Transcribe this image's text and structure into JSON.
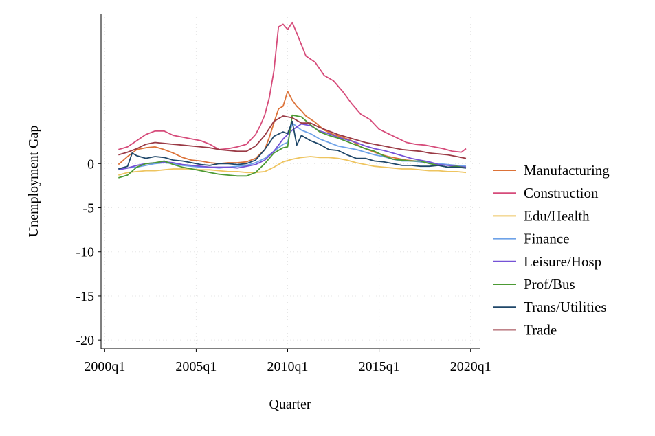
{
  "chart_data": {
    "type": "line",
    "title": "",
    "xlabel": "Quarter",
    "ylabel": "Unemployment Gap",
    "x_ticks": [
      "2000q1",
      "2005q1",
      "2010q1",
      "2015q1",
      "2020q1"
    ],
    "x_tick_values": [
      2000.0,
      2005.0,
      2010.0,
      2015.0,
      2020.0
    ],
    "y_ticks": [
      "-20",
      "-15",
      "-10",
      "-5",
      "0"
    ],
    "y_tick_values": [
      -20,
      -15,
      -10,
      -5,
      0
    ],
    "xlim": [
      1999.8,
      2020.5
    ],
    "ylim": [
      -21,
      17
    ],
    "grid": true,
    "legend_position": "right",
    "series": [
      {
        "name": "Manufacturing",
        "color": "#dc7238",
        "x": [
          2000.75,
          2001.25,
          2001.75,
          2002.25,
          2002.75,
          2003.25,
          2003.75,
          2004.25,
          2004.75,
          2005.25,
          2005.75,
          2006.25,
          2006.75,
          2007.25,
          2007.75,
          2008.25,
          2008.75,
          2009.0,
          2009.25,
          2009.5,
          2009.75,
          2010.0,
          2010.25,
          2010.5,
          2010.75,
          2011.0,
          2011.5,
          2012.0,
          2012.5,
          2013.0,
          2013.5,
          2014.0,
          2014.5,
          2015.0,
          2015.5,
          2016.0,
          2016.5,
          2017.0,
          2017.5,
          2018.0,
          2018.5,
          2019.0,
          2019.5,
          2019.75
        ],
        "y": [
          -0.1,
          0.8,
          1.6,
          1.8,
          1.9,
          1.6,
          1.2,
          0.7,
          0.4,
          0.3,
          0.1,
          0.0,
          0.1,
          0.1,
          0.2,
          0.6,
          1.6,
          3.0,
          4.6,
          6.2,
          6.5,
          8.2,
          7.2,
          6.5,
          6.0,
          5.4,
          4.7,
          3.8,
          3.3,
          3.0,
          2.6,
          1.9,
          1.5,
          1.1,
          0.8,
          0.6,
          0.4,
          0.3,
          0.1,
          0.0,
          -0.1,
          -0.2,
          -0.3,
          -0.3
        ]
      },
      {
        "name": "Construction",
        "color": "#d64b7a",
        "x": [
          2000.75,
          2001.25,
          2001.75,
          2002.25,
          2002.75,
          2003.25,
          2003.75,
          2004.25,
          2004.75,
          2005.25,
          2005.75,
          2006.25,
          2006.75,
          2007.25,
          2007.75,
          2008.25,
          2008.5,
          2008.75,
          2009.0,
          2009.25,
          2009.5,
          2009.75,
          2010.0,
          2010.25,
          2010.5,
          2010.75,
          2011.0,
          2011.5,
          2012.0,
          2012.5,
          2013.0,
          2013.5,
          2014.0,
          2014.5,
          2015.0,
          2015.5,
          2016.0,
          2016.5,
          2017.0,
          2017.5,
          2018.0,
          2018.5,
          2019.0,
          2019.5,
          2019.75
        ],
        "y": [
          1.6,
          1.9,
          2.6,
          3.3,
          3.7,
          3.7,
          3.2,
          3.0,
          2.8,
          2.6,
          2.2,
          1.6,
          1.7,
          1.9,
          2.2,
          3.3,
          4.3,
          5.5,
          7.5,
          10.5,
          15.5,
          15.8,
          15.2,
          16.0,
          14.8,
          13.5,
          12.2,
          11.5,
          10.0,
          9.4,
          8.2,
          6.8,
          5.6,
          5.0,
          3.9,
          3.4,
          2.9,
          2.4,
          2.2,
          2.1,
          1.9,
          1.7,
          1.4,
          1.3,
          1.7
        ]
      },
      {
        "name": "Edu/Health",
        "color": "#eec45f",
        "x": [
          2000.75,
          2001.25,
          2001.75,
          2002.25,
          2002.75,
          2003.25,
          2003.75,
          2004.25,
          2004.75,
          2005.25,
          2005.75,
          2006.25,
          2006.75,
          2007.25,
          2007.75,
          2008.25,
          2008.75,
          2009.25,
          2009.75,
          2010.25,
          2010.75,
          2011.25,
          2011.75,
          2012.25,
          2012.75,
          2013.25,
          2013.75,
          2014.25,
          2014.75,
          2015.25,
          2015.75,
          2016.25,
          2016.75,
          2017.25,
          2017.75,
          2018.25,
          2018.75,
          2019.25,
          2019.75
        ],
        "y": [
          -1.3,
          -1.0,
          -0.9,
          -0.8,
          -0.8,
          -0.7,
          -0.6,
          -0.6,
          -0.6,
          -0.7,
          -0.7,
          -0.8,
          -0.9,
          -0.9,
          -1.0,
          -1.0,
          -0.9,
          -0.4,
          0.2,
          0.5,
          0.7,
          0.8,
          0.7,
          0.7,
          0.6,
          0.4,
          0.1,
          -0.1,
          -0.3,
          -0.4,
          -0.5,
          -0.6,
          -0.6,
          -0.7,
          -0.8,
          -0.8,
          -0.9,
          -0.9,
          -1.0
        ]
      },
      {
        "name": "Finance",
        "color": "#6ea2e8",
        "x": [
          2000.75,
          2001.25,
          2001.75,
          2002.25,
          2002.75,
          2003.25,
          2003.75,
          2004.25,
          2004.75,
          2005.25,
          2005.75,
          2006.25,
          2006.75,
          2007.25,
          2007.75,
          2008.25,
          2008.75,
          2009.25,
          2009.75,
          2010.0,
          2010.25,
          2010.75,
          2011.25,
          2011.75,
          2012.25,
          2012.75,
          2013.25,
          2013.75,
          2014.25,
          2014.75,
          2015.25,
          2015.75,
          2016.25,
          2016.75,
          2017.25,
          2017.75,
          2018.25,
          2018.75,
          2019.25,
          2019.75
        ],
        "y": [
          -0.6,
          -0.5,
          -0.4,
          -0.2,
          0.0,
          0.1,
          0.0,
          -0.2,
          -0.3,
          -0.4,
          -0.4,
          -0.5,
          -0.4,
          -0.3,
          -0.2,
          0.1,
          0.6,
          1.4,
          2.2,
          2.4,
          4.6,
          3.8,
          3.4,
          2.8,
          2.4,
          2.0,
          1.8,
          1.6,
          1.3,
          1.0,
          0.8,
          0.5,
          0.3,
          0.3,
          0.2,
          0.1,
          0.0,
          -0.1,
          -0.2,
          -0.3
        ]
      },
      {
        "name": "Leisure/Hosp",
        "color": "#7552d6",
        "x": [
          2000.75,
          2001.25,
          2001.75,
          2002.25,
          2002.75,
          2003.25,
          2003.75,
          2004.25,
          2004.75,
          2005.25,
          2005.75,
          2006.25,
          2006.75,
          2007.25,
          2007.75,
          2008.25,
          2008.75,
          2009.25,
          2009.75,
          2010.25,
          2010.75,
          2011.25,
          2011.75,
          2012.25,
          2012.75,
          2013.25,
          2013.75,
          2014.25,
          2014.75,
          2015.25,
          2015.75,
          2016.25,
          2016.75,
          2017.25,
          2017.75,
          2018.25,
          2018.75,
          2019.25,
          2019.75
        ],
        "y": [
          -0.7,
          -0.5,
          -0.2,
          0.0,
          0.1,
          0.2,
          0.1,
          -0.1,
          -0.2,
          -0.3,
          -0.4,
          -0.4,
          -0.4,
          -0.5,
          -0.3,
          -0.1,
          0.4,
          1.4,
          2.8,
          3.8,
          4.5,
          4.3,
          3.7,
          3.4,
          3.0,
          2.7,
          2.4,
          2.0,
          1.7,
          1.5,
          1.2,
          0.9,
          0.6,
          0.4,
          0.2,
          -0.1,
          -0.2,
          -0.3,
          -0.4
        ]
      },
      {
        "name": "Prof/Bus",
        "color": "#4c9a34",
        "x": [
          2000.75,
          2001.25,
          2001.75,
          2002.25,
          2002.75,
          2003.25,
          2003.75,
          2004.25,
          2004.75,
          2005.25,
          2005.75,
          2006.25,
          2006.75,
          2007.25,
          2007.75,
          2008.25,
          2008.75,
          2009.25,
          2009.75,
          2010.0,
          2010.25,
          2010.75,
          2011.25,
          2011.75,
          2012.25,
          2012.75,
          2013.25,
          2013.75,
          2014.25,
          2014.75,
          2015.25,
          2015.75,
          2016.25,
          2016.75,
          2017.25,
          2017.75,
          2018.25,
          2018.75,
          2019.25,
          2019.75
        ],
        "y": [
          -1.6,
          -1.3,
          -0.4,
          0.0,
          0.1,
          0.3,
          -0.1,
          -0.4,
          -0.6,
          -0.8,
          -1.0,
          -1.2,
          -1.3,
          -1.4,
          -1.4,
          -1.0,
          0.0,
          1.2,
          1.8,
          1.9,
          5.5,
          5.3,
          4.4,
          3.6,
          3.2,
          2.9,
          2.5,
          2.1,
          1.7,
          1.4,
          0.9,
          0.5,
          0.4,
          0.3,
          0.3,
          0.0,
          -0.2,
          -0.4,
          -0.3,
          -0.5
        ]
      },
      {
        "name": "Trans/Utilities",
        "color": "#1f4769",
        "x": [
          2000.75,
          2001.25,
          2001.5,
          2001.75,
          2002.25,
          2002.75,
          2003.25,
          2003.75,
          2004.25,
          2004.75,
          2005.25,
          2005.75,
          2006.25,
          2006.75,
          2007.25,
          2007.75,
          2008.25,
          2008.75,
          2009.25,
          2009.75,
          2010.0,
          2010.25,
          2010.5,
          2010.75,
          2011.25,
          2011.75,
          2012.25,
          2012.75,
          2013.25,
          2013.75,
          2014.25,
          2014.75,
          2015.25,
          2015.75,
          2016.25,
          2016.75,
          2017.25,
          2017.75,
          2018.25,
          2018.75,
          2019.25,
          2019.75
        ],
        "y": [
          -0.6,
          -0.3,
          1.2,
          0.9,
          0.6,
          0.8,
          0.7,
          0.4,
          0.3,
          0.1,
          -0.1,
          -0.2,
          0.0,
          0.0,
          -0.1,
          0.0,
          0.4,
          1.6,
          3.1,
          3.6,
          3.4,
          4.8,
          2.1,
          3.2,
          2.6,
          2.2,
          1.6,
          1.5,
          1.0,
          0.6,
          0.6,
          0.3,
          0.2,
          0.0,
          -0.2,
          -0.2,
          -0.3,
          -0.3,
          -0.2,
          -0.4,
          -0.4,
          -0.5
        ]
      },
      {
        "name": "Trade",
        "color": "#9a3a45",
        "x": [
          2000.75,
          2001.25,
          2001.75,
          2002.25,
          2002.75,
          2003.25,
          2003.75,
          2004.25,
          2004.75,
          2005.25,
          2005.75,
          2006.25,
          2006.75,
          2007.25,
          2007.75,
          2008.25,
          2008.75,
          2009.25,
          2009.75,
          2010.25,
          2010.75,
          2011.25,
          2011.75,
          2012.25,
          2012.75,
          2013.25,
          2013.75,
          2014.25,
          2014.75,
          2015.25,
          2015.75,
          2016.25,
          2016.75,
          2017.25,
          2017.75,
          2018.25,
          2018.75,
          2019.25,
          2019.75
        ],
        "y": [
          1.0,
          1.3,
          1.7,
          2.2,
          2.4,
          2.3,
          2.2,
          2.1,
          2.0,
          1.9,
          1.8,
          1.6,
          1.5,
          1.4,
          1.4,
          2.0,
          3.2,
          4.8,
          5.4,
          5.2,
          4.6,
          4.6,
          4.1,
          3.7,
          3.3,
          3.0,
          2.7,
          2.4,
          2.2,
          2.0,
          1.8,
          1.6,
          1.5,
          1.4,
          1.2,
          1.1,
          1.0,
          0.8,
          0.6
        ]
      }
    ]
  }
}
